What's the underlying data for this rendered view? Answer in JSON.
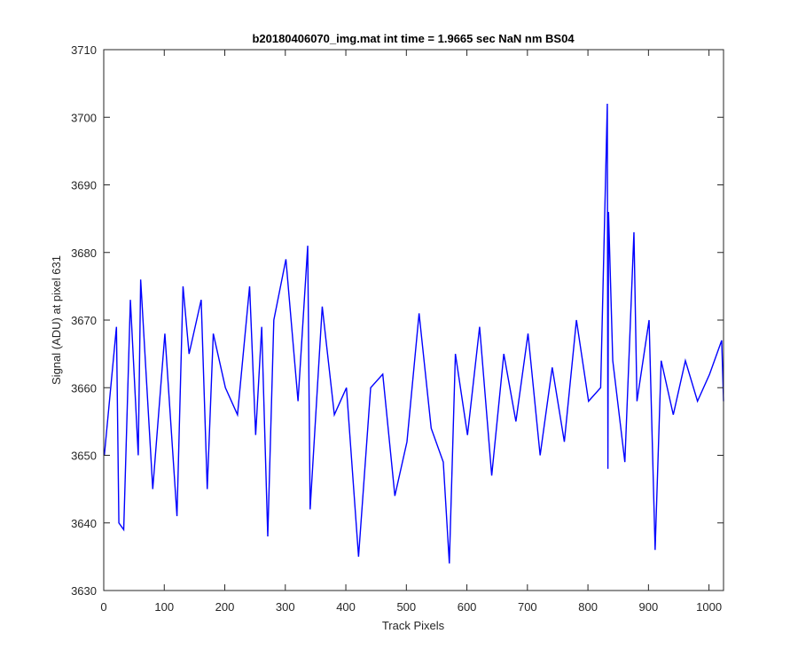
{
  "chart_data": {
    "type": "line",
    "title": "b20180406070_img.mat int time = 1.9665 sec  NaN nm BS04",
    "xlabel": "Track Pixels",
    "ylabel": "Signal (ADU) at pixel 631",
    "xlim": [
      0,
      1024
    ],
    "ylim": [
      3630,
      3710
    ],
    "xticks": [
      0,
      100,
      200,
      300,
      400,
      500,
      600,
      700,
      800,
      900,
      1000
    ],
    "yticks": [
      3630,
      3640,
      3650,
      3660,
      3670,
      3680,
      3690,
      3700,
      3710
    ],
    "grid": false,
    "line_color": "#0000FF",
    "series": [
      {
        "x": [
          1,
          21,
          25,
          33,
          44,
          57,
          61,
          81,
          101,
          121,
          131,
          141,
          161,
          171,
          181,
          201,
          221,
          241,
          251,
          261,
          271,
          281,
          301,
          321,
          337,
          341,
          361,
          381,
          401,
          421,
          441,
          461,
          481,
          501,
          521,
          541,
          561,
          571,
          581,
          601,
          621,
          641,
          661,
          681,
          701,
          721,
          741,
          761,
          781,
          801,
          821,
          832,
          833,
          834,
          841,
          861,
          876,
          881,
          901,
          911,
          921,
          941,
          961,
          981,
          1001,
          1021,
          1024
        ],
        "values": [
          3650,
          3669,
          3640,
          3639,
          3673,
          3650,
          3676,
          3645,
          3668,
          3641,
          3675,
          3665,
          3673,
          3645,
          3668,
          3660,
          3656,
          3675,
          3653,
          3669,
          3638,
          3670,
          3679,
          3658,
          3681,
          3642,
          3672,
          3656,
          3660,
          3635,
          3660,
          3662,
          3644,
          3652,
          3671,
          3654,
          3649,
          3634,
          3665,
          3653,
          3669,
          3647,
          3665,
          3655,
          3668,
          3650,
          3663,
          3652,
          3670,
          3658,
          3660,
          3702,
          3648,
          3686,
          3664,
          3649,
          3683,
          3658,
          3670,
          3636,
          3664,
          3656,
          3664,
          3658,
          3662,
          3667,
          3658
        ]
      }
    ]
  }
}
